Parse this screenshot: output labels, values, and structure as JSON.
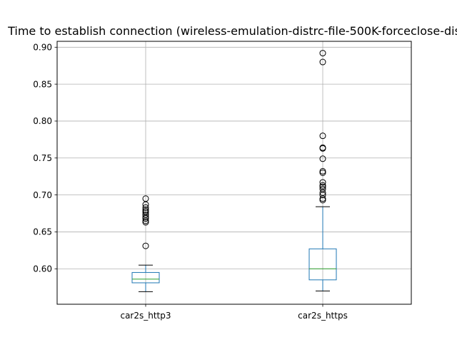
{
  "chart_data": {
    "type": "box",
    "title": "Time to establish connection (wireless-emulation-distrc-file-500K-forceclose-dis",
    "xlabel": "",
    "ylabel": "",
    "categories": [
      "car2s_http3",
      "car2s_https"
    ],
    "ylim": [
      0.552,
      0.908
    ],
    "yticks": [
      0.6,
      0.65,
      0.7,
      0.75,
      0.8,
      0.85,
      0.9
    ],
    "ytick_labels": [
      "0.60",
      "0.65",
      "0.70",
      "0.75",
      "0.80",
      "0.85",
      "0.90"
    ],
    "grid": true,
    "boxes": [
      {
        "name": "car2s_http3",
        "whisker_low": 0.569,
        "q1": 0.581,
        "median": 0.586,
        "q3": 0.595,
        "whisker_high": 0.605,
        "outliers": [
          0.631,
          0.663,
          0.665,
          0.668,
          0.67,
          0.673,
          0.676,
          0.678,
          0.68,
          0.683,
          0.687,
          0.695
        ]
      },
      {
        "name": "car2s_https",
        "whisker_low": 0.57,
        "q1": 0.585,
        "median": 0.6,
        "q3": 0.627,
        "whisker_high": 0.684,
        "outliers": [
          0.693,
          0.695,
          0.7,
          0.703,
          0.708,
          0.711,
          0.713,
          0.717,
          0.73,
          0.732,
          0.749,
          0.763,
          0.764,
          0.78,
          0.88,
          0.892
        ]
      }
    ],
    "colors": {
      "box": "#1f77b4",
      "median": "#2ca02c",
      "whisker_cap": "#000000",
      "grid": "#b0b0b0",
      "outlier": "#000000"
    }
  }
}
